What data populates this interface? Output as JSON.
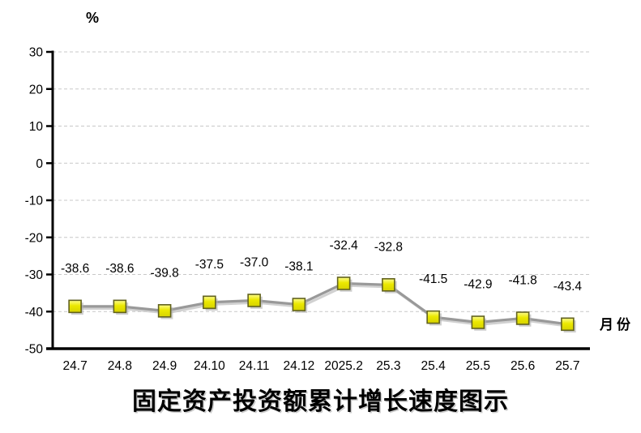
{
  "chart_data": {
    "type": "line",
    "title": "固定资产投资额累计增长速度图示",
    "ylabel": "%",
    "xlabel": "月份",
    "categories": [
      "24.7",
      "24.8",
      "24.9",
      "24.10",
      "24.11",
      "24.12",
      "2025.2",
      "25.3",
      "25.4",
      "25.5",
      "25.6",
      "25.7"
    ],
    "series": [
      {
        "values": [
          -38.6,
          -38.6,
          -39.8,
          -37.5,
          -37.0,
          -38.1,
          -32.4,
          -32.8,
          -41.5,
          -42.9,
          -41.8,
          -43.4
        ]
      }
    ],
    "data_labels": [
      "-38.6",
      "-38.6",
      "-39.8",
      "-37.5",
      "-37.0",
      "-38.1",
      "-32.4",
      "-32.8",
      "-41.5",
      "-42.9",
      "-41.8",
      "-43.4"
    ],
    "yticks": [
      30,
      20,
      10,
      0,
      -10,
      -20,
      -30,
      -40,
      -50
    ],
    "ytick_labels": [
      "30",
      "20",
      "10",
      "0",
      "-10",
      "-20",
      "-30",
      "-40",
      "-50"
    ],
    "ylim": [
      -50,
      30
    ],
    "grid": true,
    "legend": "none",
    "marker": "square",
    "colors": {
      "line": "#999999",
      "line_shadow": "#c9c9c9",
      "marker_fill": "#ebe800",
      "marker_highlight": "#fdfd8e",
      "marker_fill_dark": "#d6d200",
      "marker_border": "#62621e",
      "marker_shadow": "#b0b0b0",
      "gridline": "#c8c8c8",
      "axis": "#000000",
      "text": "#000000",
      "background": "#ffffff"
    }
  }
}
